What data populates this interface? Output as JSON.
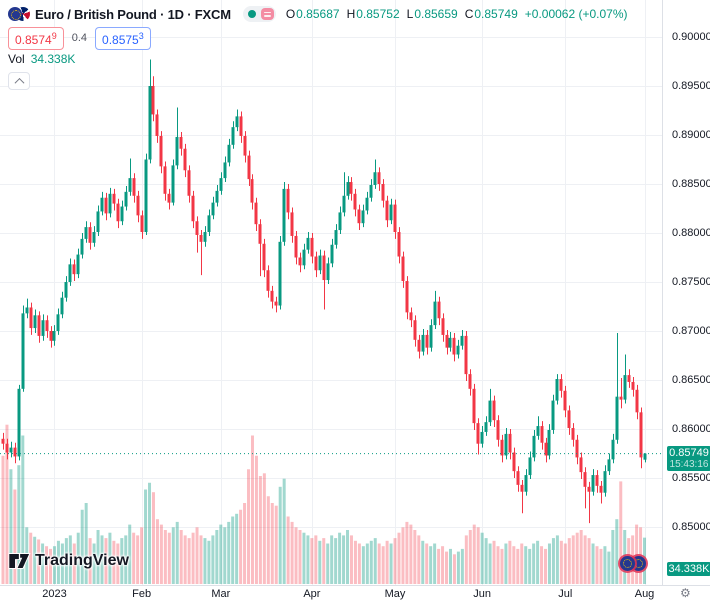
{
  "header": {
    "symbol_title": "Euro / British Pound · 1D · FXCM",
    "ohlc": {
      "o_label": "O",
      "o": "0.85687",
      "h_label": "H",
      "h": "0.85752",
      "l_label": "L",
      "l": "0.85659",
      "c_label": "C",
      "c": "0.85749",
      "change": "+0.00062 (+0.07%)"
    },
    "bid": {
      "main": "0.8574",
      "sup": "9"
    },
    "spread": "0.4",
    "ask": {
      "main": "0.8575",
      "sup": "3"
    },
    "vol_label": "Vol",
    "vol_value": "34.338K"
  },
  "price_label": {
    "price": "0.85749",
    "time": "15:43:16"
  },
  "volume_axis_label": "34.338K",
  "footer": {
    "logo_text": "TradingView"
  },
  "colors": {
    "up": "#089981",
    "down": "#F23645",
    "vol_up": "rgba(8,153,129,0.38)",
    "vol_down": "rgba(242,54,69,0.33)",
    "grid": "#eef0f4",
    "axis_text": "#131722",
    "muted": "#787b86",
    "bid": "#F23645",
    "ask": "#2962FF",
    "label_bg": "#089981"
  },
  "chart_data": {
    "type": "candlestick_with_volume",
    "symbol": "Euro / British Pound",
    "interval": "1D",
    "exchange": "FXCM",
    "last_close": 0.85749,
    "last_time": "15:43:16",
    "last_volume": "34.338K",
    "y_axis": {
      "min": 0.85,
      "max": 0.9,
      "tick_step": 0.005,
      "ticks": [
        {
          "v": 0.9,
          "label": "0.90000"
        },
        {
          "v": 0.895,
          "label": "0.89500"
        },
        {
          "v": 0.89,
          "label": "0.89000"
        },
        {
          "v": 0.885,
          "label": "0.88500"
        },
        {
          "v": 0.88,
          "label": "0.88000"
        },
        {
          "v": 0.875,
          "label": "0.87500"
        },
        {
          "v": 0.87,
          "label": "0.87000"
        },
        {
          "v": 0.865,
          "label": "0.86500"
        },
        {
          "v": 0.86,
          "label": "0.86000"
        },
        {
          "v": 0.855,
          "label": "0.85500"
        },
        {
          "v": 0.85,
          "label": "0.85000"
        }
      ]
    },
    "x_axis": {
      "labels": [
        {
          "i": 13,
          "label": "2023"
        },
        {
          "i": 35,
          "label": "Feb"
        },
        {
          "i": 55,
          "label": "Mar"
        },
        {
          "i": 78,
          "label": "Apr"
        },
        {
          "i": 99,
          "label": "May"
        },
        {
          "i": 121,
          "label": "Jun"
        },
        {
          "i": 142,
          "label": "Jul"
        },
        {
          "i": 162,
          "label": "Aug"
        }
      ]
    },
    "candles_format": [
      "open",
      "high",
      "low",
      "close",
      "volume_k"
    ],
    "candles": [
      [
        0.859,
        0.8596,
        0.8579,
        0.8585,
        95
      ],
      [
        0.8585,
        0.859,
        0.8569,
        0.8576,
        118
      ],
      [
        0.8576,
        0.8587,
        0.8571,
        0.8581,
        85
      ],
      [
        0.8581,
        0.8586,
        0.8565,
        0.8572,
        70
      ],
      [
        0.8572,
        0.8645,
        0.8568,
        0.8641,
        88
      ],
      [
        0.8641,
        0.8726,
        0.8638,
        0.8718,
        110
      ],
      [
        0.8718,
        0.8733,
        0.8713,
        0.8724,
        42
      ],
      [
        0.8724,
        0.8729,
        0.8696,
        0.8703,
        38
      ],
      [
        0.8703,
        0.8722,
        0.8698,
        0.8716,
        35
      ],
      [
        0.8716,
        0.872,
        0.8688,
        0.8695,
        33
      ],
      [
        0.8695,
        0.8717,
        0.869,
        0.8711,
        30
      ],
      [
        0.8711,
        0.8716,
        0.8693,
        0.87,
        28
      ],
      [
        0.87,
        0.8705,
        0.8683,
        0.869,
        26
      ],
      [
        0.869,
        0.8706,
        0.8685,
        0.87,
        28
      ],
      [
        0.87,
        0.8723,
        0.8696,
        0.8717,
        32
      ],
      [
        0.8717,
        0.874,
        0.8713,
        0.8734,
        30
      ],
      [
        0.8734,
        0.8756,
        0.873,
        0.875,
        34
      ],
      [
        0.875,
        0.8774,
        0.8746,
        0.8768,
        36
      ],
      [
        0.8768,
        0.8773,
        0.8751,
        0.8758,
        30
      ],
      [
        0.8758,
        0.8784,
        0.8754,
        0.8778,
        38
      ],
      [
        0.8778,
        0.88,
        0.8774,
        0.8794,
        55
      ],
      [
        0.8794,
        0.8812,
        0.879,
        0.8806,
        60
      ],
      [
        0.8806,
        0.8811,
        0.8783,
        0.879,
        34
      ],
      [
        0.879,
        0.8807,
        0.8786,
        0.8801,
        30
      ],
      [
        0.8801,
        0.8828,
        0.8797,
        0.8822,
        40
      ],
      [
        0.8822,
        0.8842,
        0.8818,
        0.8836,
        36
      ],
      [
        0.8836,
        0.8841,
        0.8813,
        0.882,
        34
      ],
      [
        0.882,
        0.8846,
        0.8816,
        0.884,
        38
      ],
      [
        0.884,
        0.8845,
        0.8823,
        0.883,
        32
      ],
      [
        0.883,
        0.8835,
        0.8805,
        0.8812,
        30
      ],
      [
        0.8812,
        0.8833,
        0.8808,
        0.8827,
        34
      ],
      [
        0.8827,
        0.8848,
        0.8823,
        0.8842,
        36
      ],
      [
        0.8842,
        0.8876,
        0.8838,
        0.8856,
        44
      ],
      [
        0.8856,
        0.8861,
        0.8831,
        0.8838,
        38
      ],
      [
        0.8838,
        0.8843,
        0.8811,
        0.8818,
        36
      ],
      [
        0.8818,
        0.8823,
        0.8794,
        0.8801,
        42
      ],
      [
        0.8801,
        0.8881,
        0.8798,
        0.8875,
        70
      ],
      [
        0.8875,
        0.8977,
        0.8871,
        0.895,
        75
      ],
      [
        0.895,
        0.896,
        0.8914,
        0.8921,
        68
      ],
      [
        0.8921,
        0.8926,
        0.8892,
        0.8899,
        48
      ],
      [
        0.8899,
        0.8904,
        0.8861,
        0.8868,
        44
      ],
      [
        0.8868,
        0.8873,
        0.8833,
        0.884,
        40
      ],
      [
        0.884,
        0.8845,
        0.8824,
        0.8831,
        38
      ],
      [
        0.8831,
        0.8875,
        0.8828,
        0.8869,
        42
      ],
      [
        0.8869,
        0.8928,
        0.8865,
        0.8898,
        46
      ],
      [
        0.8898,
        0.8903,
        0.8879,
        0.8886,
        40
      ],
      [
        0.8886,
        0.8891,
        0.8857,
        0.8864,
        36
      ],
      [
        0.8864,
        0.8869,
        0.8831,
        0.8838,
        34
      ],
      [
        0.8838,
        0.8843,
        0.8805,
        0.8812,
        38
      ],
      [
        0.8812,
        0.8817,
        0.878,
        0.8798,
        42
      ],
      [
        0.8798,
        0.8803,
        0.8757,
        0.8791,
        36
      ],
      [
        0.8791,
        0.8807,
        0.8786,
        0.8801,
        34
      ],
      [
        0.8801,
        0.8824,
        0.8797,
        0.8818,
        32
      ],
      [
        0.8818,
        0.8837,
        0.8814,
        0.8831,
        36
      ],
      [
        0.8831,
        0.8849,
        0.8827,
        0.8843,
        40
      ],
      [
        0.8843,
        0.8862,
        0.8839,
        0.8856,
        44
      ],
      [
        0.8856,
        0.8878,
        0.8852,
        0.8872,
        42
      ],
      [
        0.8872,
        0.8896,
        0.8868,
        0.889,
        46
      ],
      [
        0.889,
        0.8914,
        0.8886,
        0.8908,
        50
      ],
      [
        0.8908,
        0.8926,
        0.8904,
        0.8919,
        52
      ],
      [
        0.8919,
        0.8924,
        0.8892,
        0.8899,
        55
      ],
      [
        0.8899,
        0.8904,
        0.8872,
        0.8879,
        60
      ],
      [
        0.8879,
        0.8884,
        0.8848,
        0.8855,
        85
      ],
      [
        0.8855,
        0.886,
        0.8824,
        0.8831,
        110
      ],
      [
        0.8831,
        0.8836,
        0.8802,
        0.8809,
        95
      ],
      [
        0.8809,
        0.8814,
        0.8756,
        0.8789,
        80
      ],
      [
        0.8789,
        0.8794,
        0.8755,
        0.8762,
        82
      ],
      [
        0.8762,
        0.8767,
        0.8734,
        0.8741,
        65
      ],
      [
        0.8741,
        0.8746,
        0.8723,
        0.873,
        60
      ],
      [
        0.873,
        0.8735,
        0.8719,
        0.8726,
        58
      ],
      [
        0.8726,
        0.8797,
        0.8722,
        0.8791,
        72
      ],
      [
        0.8791,
        0.8852,
        0.8787,
        0.8845,
        78
      ],
      [
        0.8845,
        0.885,
        0.8814,
        0.8821,
        50
      ],
      [
        0.8821,
        0.8826,
        0.879,
        0.8797,
        46
      ],
      [
        0.8797,
        0.8802,
        0.8768,
        0.8775,
        42
      ],
      [
        0.8775,
        0.878,
        0.876,
        0.8767,
        40
      ],
      [
        0.8767,
        0.8789,
        0.8763,
        0.8783,
        38
      ],
      [
        0.8783,
        0.8801,
        0.8779,
        0.8795,
        36
      ],
      [
        0.8795,
        0.88,
        0.8769,
        0.8776,
        34
      ],
      [
        0.8776,
        0.8781,
        0.8755,
        0.8762,
        36
      ],
      [
        0.8762,
        0.8783,
        0.8758,
        0.8777,
        32
      ],
      [
        0.8777,
        0.8782,
        0.8722,
        0.8752,
        34
      ],
      [
        0.8752,
        0.8775,
        0.8748,
        0.8769,
        30
      ],
      [
        0.8769,
        0.8794,
        0.8765,
        0.8788,
        36
      ],
      [
        0.8788,
        0.8809,
        0.8784,
        0.8803,
        34
      ],
      [
        0.8803,
        0.8827,
        0.8799,
        0.8821,
        38
      ],
      [
        0.8821,
        0.8862,
        0.8817,
        0.8838,
        36
      ],
      [
        0.8838,
        0.8858,
        0.8834,
        0.8852,
        40
      ],
      [
        0.8852,
        0.8857,
        0.8833,
        0.884,
        36
      ],
      [
        0.884,
        0.8845,
        0.8817,
        0.8824,
        32
      ],
      [
        0.8824,
        0.8829,
        0.8803,
        0.881,
        30
      ],
      [
        0.881,
        0.8829,
        0.8806,
        0.8823,
        28
      ],
      [
        0.8823,
        0.8842,
        0.8819,
        0.8836,
        30
      ],
      [
        0.8836,
        0.8855,
        0.8832,
        0.8849,
        32
      ],
      [
        0.8849,
        0.8875,
        0.8845,
        0.8862,
        34
      ],
      [
        0.8862,
        0.8867,
        0.8843,
        0.885,
        30
      ],
      [
        0.885,
        0.8855,
        0.8826,
        0.8833,
        28
      ],
      [
        0.8833,
        0.8838,
        0.8806,
        0.8813,
        32
      ],
      [
        0.8813,
        0.8835,
        0.8809,
        0.8829,
        30
      ],
      [
        0.8829,
        0.8834,
        0.8794,
        0.8801,
        34
      ],
      [
        0.8801,
        0.8806,
        0.8769,
        0.8776,
        38
      ],
      [
        0.8776,
        0.8781,
        0.8744,
        0.8751,
        42
      ],
      [
        0.8751,
        0.8756,
        0.8712,
        0.8719,
        46
      ],
      [
        0.8719,
        0.8724,
        0.8704,
        0.8711,
        44
      ],
      [
        0.8711,
        0.8716,
        0.8684,
        0.8691,
        40
      ],
      [
        0.8691,
        0.8696,
        0.8672,
        0.8679,
        36
      ],
      [
        0.8679,
        0.8702,
        0.8675,
        0.8696,
        32
      ],
      [
        0.8696,
        0.8701,
        0.8676,
        0.8683,
        30
      ],
      [
        0.8683,
        0.8712,
        0.8679,
        0.8706,
        28
      ],
      [
        0.8706,
        0.8741,
        0.8702,
        0.873,
        30
      ],
      [
        0.873,
        0.8735,
        0.8706,
        0.8713,
        26
      ],
      [
        0.8713,
        0.8718,
        0.8689,
        0.8696,
        28
      ],
      [
        0.8696,
        0.8701,
        0.8676,
        0.8683,
        24
      ],
      [
        0.8683,
        0.8699,
        0.8679,
        0.8693,
        26
      ],
      [
        0.8693,
        0.8698,
        0.8669,
        0.8676,
        22
      ],
      [
        0.8676,
        0.8691,
        0.8672,
        0.8685,
        24
      ],
      [
        0.8685,
        0.8701,
        0.8681,
        0.8695,
        26
      ],
      [
        0.8695,
        0.87,
        0.8649,
        0.8656,
        36
      ],
      [
        0.8656,
        0.8661,
        0.8634,
        0.8641,
        40
      ],
      [
        0.8641,
        0.8646,
        0.8599,
        0.8606,
        44
      ],
      [
        0.8606,
        0.8611,
        0.8574,
        0.8585,
        42
      ],
      [
        0.8585,
        0.8603,
        0.8581,
        0.8597,
        38
      ],
      [
        0.8597,
        0.8613,
        0.8593,
        0.8607,
        34
      ],
      [
        0.8607,
        0.8641,
        0.8603,
        0.8629,
        30
      ],
      [
        0.8629,
        0.8634,
        0.8602,
        0.8609,
        32
      ],
      [
        0.8609,
        0.8614,
        0.8582,
        0.8589,
        28
      ],
      [
        0.8589,
        0.8594,
        0.8566,
        0.8573,
        26
      ],
      [
        0.8573,
        0.8601,
        0.8569,
        0.8595,
        30
      ],
      [
        0.8595,
        0.86,
        0.8569,
        0.8576,
        32
      ],
      [
        0.8576,
        0.8581,
        0.855,
        0.8557,
        28
      ],
      [
        0.8557,
        0.8562,
        0.8536,
        0.8543,
        26
      ],
      [
        0.8543,
        0.8548,
        0.8514,
        0.8536,
        30
      ],
      [
        0.8536,
        0.8559,
        0.8532,
        0.8553,
        28
      ],
      [
        0.8553,
        0.8577,
        0.8549,
        0.8571,
        26
      ],
      [
        0.8571,
        0.8599,
        0.8567,
        0.8593,
        30
      ],
      [
        0.8593,
        0.8613,
        0.8589,
        0.8603,
        32
      ],
      [
        0.8603,
        0.8608,
        0.8579,
        0.8586,
        28
      ],
      [
        0.8586,
        0.8591,
        0.8566,
        0.8573,
        26
      ],
      [
        0.8573,
        0.8605,
        0.8569,
        0.8599,
        30
      ],
      [
        0.8599,
        0.8635,
        0.8595,
        0.8629,
        34
      ],
      [
        0.8629,
        0.8656,
        0.8625,
        0.8651,
        36
      ],
      [
        0.8651,
        0.8656,
        0.8632,
        0.8639,
        32
      ],
      [
        0.8639,
        0.8644,
        0.8612,
        0.8619,
        30
      ],
      [
        0.8619,
        0.8624,
        0.8594,
        0.8601,
        34
      ],
      [
        0.8601,
        0.8606,
        0.8582,
        0.8589,
        36
      ],
      [
        0.8589,
        0.8594,
        0.8564,
        0.8571,
        38
      ],
      [
        0.8571,
        0.8576,
        0.8549,
        0.8556,
        40
      ],
      [
        0.8556,
        0.8561,
        0.8519,
        0.8541,
        36
      ],
      [
        0.8541,
        0.8546,
        0.8504,
        0.8536,
        34
      ],
      [
        0.8536,
        0.8559,
        0.8532,
        0.8553,
        30
      ],
      [
        0.8553,
        0.8558,
        0.8535,
        0.8542,
        28
      ],
      [
        0.8542,
        0.8547,
        0.8524,
        0.8535,
        26
      ],
      [
        0.8535,
        0.8563,
        0.8531,
        0.8557,
        28
      ],
      [
        0.8557,
        0.8575,
        0.8553,
        0.8569,
        24
      ],
      [
        0.8569,
        0.8595,
        0.8565,
        0.8589,
        40
      ],
      [
        0.8589,
        0.8698,
        0.8585,
        0.8633,
        48
      ],
      [
        0.8633,
        0.8652,
        0.8621,
        0.863,
        76
      ],
      [
        0.863,
        0.8676,
        0.8626,
        0.8655,
        40
      ],
      [
        0.8655,
        0.8661,
        0.8642,
        0.8648,
        34
      ],
      [
        0.8648,
        0.8653,
        0.8633,
        0.864,
        36
      ],
      [
        0.864,
        0.8645,
        0.861,
        0.8617,
        44
      ],
      [
        0.8617,
        0.8622,
        0.856,
        0.8571,
        42
      ],
      [
        0.85687,
        0.85752,
        0.85659,
        0.85749,
        34.338
      ]
    ]
  }
}
